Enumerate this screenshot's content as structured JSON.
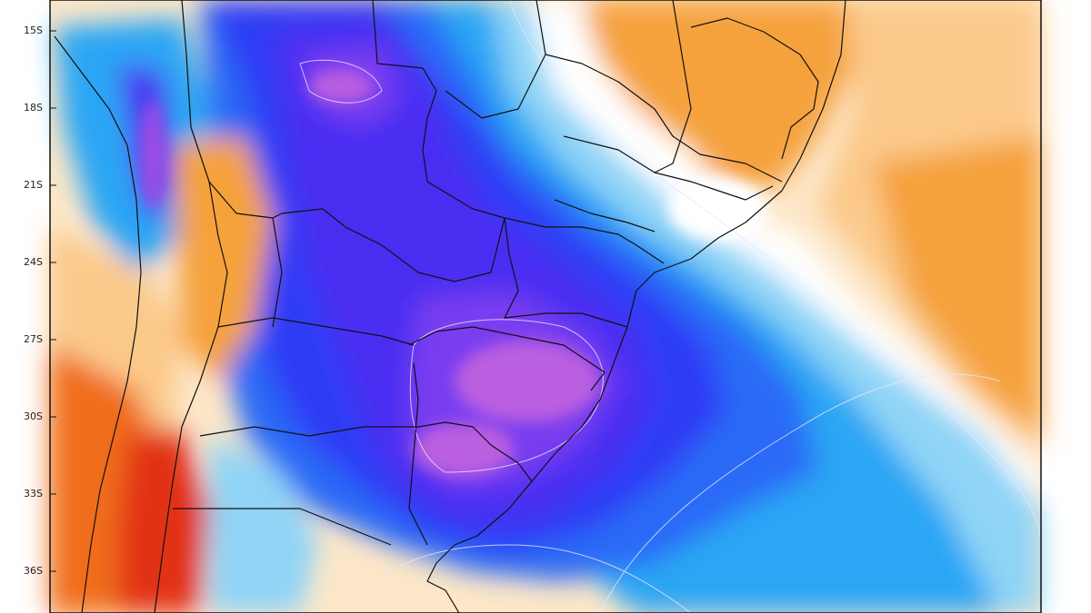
{
  "map": {
    "latitude_labels": [
      "15S",
      "18S",
      "21S",
      "24S",
      "27S",
      "30S",
      "33S",
      "36S"
    ],
    "legend": null
  },
  "colors": {
    "deep_magenta": "#b95ee0",
    "violet": "#7a3ef0",
    "indigo": "#4a2ff2",
    "royal_blue": "#2f3cf5",
    "blue": "#2a6bf6",
    "sky_blue": "#2ba6f4",
    "light_blue": "#8fd4f7",
    "pale_cyan": "#d7f0fb",
    "white": "#ffffff",
    "pale_orange": "#fde7c8",
    "light_orange": "#fbc98a",
    "orange": "#f5a23e",
    "dark_orange": "#f06d1c",
    "red": "#e23218",
    "boundary_line": "#111111"
  }
}
